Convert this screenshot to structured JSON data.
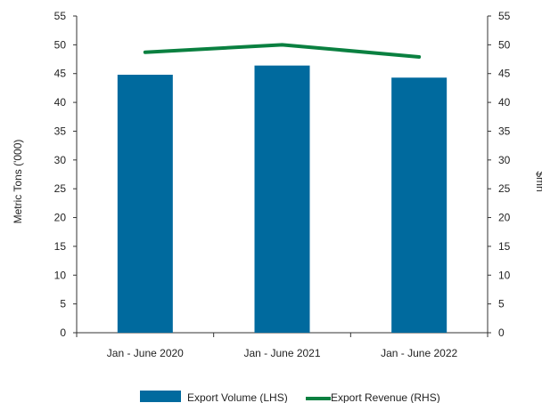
{
  "chart_data": {
    "type": "bar",
    "categories": [
      "Jan - June 2020",
      "Jan - June 2021",
      "Jan - June 2022"
    ],
    "series": [
      {
        "name": "Export Volume (LHS)",
        "type": "bar",
        "axis": "left",
        "values": [
          44.8,
          46.4,
          44.3
        ]
      },
      {
        "name": "Export Revenue (RHS)",
        "type": "line",
        "axis": "right",
        "values": [
          48.7,
          50.0,
          47.9
        ]
      }
    ],
    "ylabel": "Metric Tons ('000)",
    "ylabel_right": "$mn",
    "ylim": [
      0,
      55
    ],
    "ylim_right": [
      0,
      55
    ],
    "yticks": [
      0,
      5,
      10,
      15,
      20,
      25,
      30,
      35,
      40,
      45,
      50,
      55
    ],
    "yticks_right": [
      0,
      5,
      10,
      15,
      20,
      25,
      30,
      35,
      40,
      45,
      50,
      55
    ],
    "grid": false,
    "legend_position": "bottom",
    "colors": {
      "bar": "#006a9e",
      "line": "#0a8040"
    }
  }
}
